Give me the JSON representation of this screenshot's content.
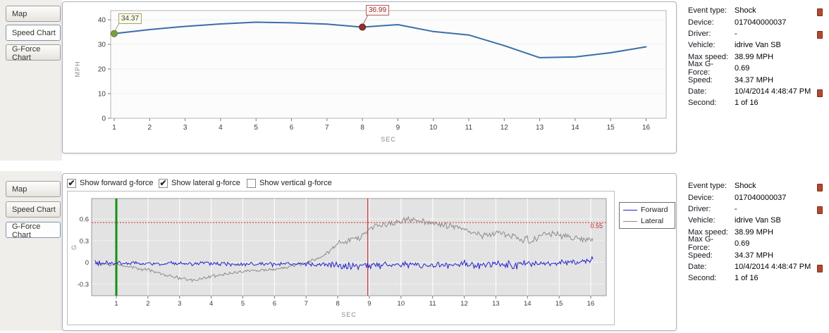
{
  "colors": {
    "speed_line": "#3a6fa8",
    "start_marker_fill": "#7f9d3f",
    "start_marker_stroke": "#5d7a2b",
    "event_marker_fill": "#8e3232",
    "event_marker_stroke": "#642020",
    "threshold_color": "#cc2a2a",
    "event_line_color": "#cc2a2a",
    "start_line_color": "#149014"
  },
  "top_panel": {
    "tabs": [
      {
        "label": "Map",
        "active": false
      },
      {
        "label": "Speed Chart",
        "active": true
      },
      {
        "label": "G-Force Chart",
        "active": false
      }
    ]
  },
  "bottom_panel": {
    "tabs": [
      {
        "label": "Map",
        "active": false
      },
      {
        "label": "Speed Chart",
        "active": false
      },
      {
        "label": "G-Force Chart",
        "active": true
      }
    ],
    "checkboxes": [
      {
        "label": "Show forward g-force",
        "checked": true
      },
      {
        "label": "Show lateral g-force",
        "checked": true
      },
      {
        "label": "Show vertical g-force",
        "checked": false
      }
    ],
    "legend": [
      {
        "label": "Forward",
        "color": "#2323cc"
      },
      {
        "label": "Lateral",
        "color": "#8c8c8c"
      }
    ]
  },
  "info_rows": [
    {
      "label": "Event type:",
      "value": "Shock"
    },
    {
      "label": "Device:",
      "value": "017040000037"
    },
    {
      "label": "Driver:",
      "value": "-"
    },
    {
      "label": "Vehicle:",
      "value": "idrive Van SB"
    },
    {
      "label": "Max speed:",
      "value": "38.99 MPH"
    },
    {
      "label": "Max G-Force:",
      "value": "0.69"
    },
    {
      "label": "Speed:",
      "value": "34.37 MPH"
    },
    {
      "label": "Date:",
      "value": "10/4/2014 4:48:47 PM"
    },
    {
      "label": "Second:",
      "value": "1 of 16"
    }
  ],
  "chart_data": [
    {
      "id": "speed",
      "type": "line",
      "title": "",
      "xlabel": "SEC",
      "ylabel": "MPH",
      "ylim": [
        0,
        42
      ],
      "y_ticks": [
        0,
        10,
        20,
        30,
        40
      ],
      "x_ticks": [
        1,
        2,
        3,
        4,
        5,
        6,
        7,
        8,
        9,
        10,
        11,
        12,
        13,
        14,
        15,
        16
      ],
      "categories": [
        1,
        2,
        3,
        4,
        5,
        6,
        7,
        8,
        9,
        10,
        11,
        12,
        13,
        14,
        15,
        16
      ],
      "series": [
        {
          "name": "Speed (MPH)",
          "values": [
            34.37,
            36.0,
            37.3,
            38.3,
            38.99,
            38.75,
            38.2,
            36.99,
            38.0,
            35.2,
            33.8,
            29.5,
            24.6,
            24.9,
            26.6,
            29.0
          ]
        }
      ],
      "markers": [
        {
          "x": 1,
          "y": 34.37,
          "label": "34.37",
          "kind": "start"
        },
        {
          "x": 8,
          "y": 36.99,
          "label": "36.99",
          "kind": "event"
        }
      ]
    },
    {
      "id": "gforce",
      "type": "line",
      "title": "",
      "xlabel": "SEC",
      "ylabel": "G",
      "ylim": [
        -0.46,
        0.88
      ],
      "y_ticks": [
        -0.3,
        0,
        0.3,
        0.6
      ],
      "x_ticks": [
        1,
        2,
        3,
        4,
        5,
        6,
        7,
        8,
        9,
        10,
        11,
        12,
        13,
        14,
        15,
        16
      ],
      "threshold": {
        "value": 0.55,
        "label": "0.55"
      },
      "start_line_x": 1,
      "event_line_x": 8.95,
      "x_start": 0.33,
      "x_end": 16.09,
      "step": 0.033,
      "series": [
        {
          "name": "Forward",
          "color": "#2323cc",
          "seed": 41,
          "trend": [
            [
              0.33,
              -0.01
            ],
            [
              2,
              -0.02
            ],
            [
              4,
              -0.02
            ],
            [
              6,
              -0.03
            ],
            [
              7.5,
              -0.03
            ],
            [
              8.5,
              -0.05
            ],
            [
              9,
              -0.03
            ],
            [
              9.5,
              -0.05
            ],
            [
              10,
              -0.02
            ],
            [
              10.5,
              -0.05
            ],
            [
              11,
              -0.03
            ],
            [
              11.5,
              -0.05
            ],
            [
              12,
              -0.02
            ],
            [
              12.5,
              -0.04
            ],
            [
              13,
              -0.02
            ],
            [
              13.6,
              -0.06
            ],
            [
              14,
              -0.01
            ],
            [
              14.5,
              -0.03
            ],
            [
              15,
              -0.01
            ],
            [
              15.5,
              0.0
            ],
            [
              16.09,
              0.04
            ]
          ],
          "noise_envelope": [
            [
              0.33,
              0.045
            ],
            [
              2,
              0.04
            ],
            [
              4,
              0.035
            ],
            [
              6,
              0.035
            ],
            [
              7.5,
              0.04
            ],
            [
              8.2,
              0.055
            ],
            [
              9,
              0.07
            ],
            [
              10,
              0.055
            ],
            [
              11,
              0.06
            ],
            [
              12,
              0.055
            ],
            [
              13,
              0.07
            ],
            [
              13.8,
              0.075
            ],
            [
              14.5,
              0.06
            ],
            [
              15.2,
              0.045
            ],
            [
              16.09,
              0.045
            ]
          ]
        },
        {
          "name": "Lateral",
          "color": "#8c8c8c",
          "seed": 97,
          "trend": [
            [
              0.33,
              -0.02
            ],
            [
              1,
              -0.03
            ],
            [
              1.5,
              -0.07
            ],
            [
              2,
              -0.1
            ],
            [
              2.5,
              -0.17
            ],
            [
              3,
              -0.22
            ],
            [
              3.4,
              -0.25
            ],
            [
              4,
              -0.2
            ],
            [
              4.5,
              -0.16
            ],
            [
              5,
              -0.13
            ],
            [
              5.5,
              -0.11
            ],
            [
              6,
              -0.1
            ],
            [
              6.5,
              -0.06
            ],
            [
              7,
              -0.01
            ],
            [
              7.4,
              0.05
            ],
            [
              7.7,
              0.14
            ],
            [
              8,
              0.26
            ],
            [
              8.4,
              0.3
            ],
            [
              8.7,
              0.34
            ],
            [
              9,
              0.48
            ],
            [
              9.4,
              0.52
            ],
            [
              9.8,
              0.53
            ],
            [
              10.1,
              0.58
            ],
            [
              10.4,
              0.6
            ],
            [
              10.7,
              0.56
            ],
            [
              11,
              0.55
            ],
            [
              11.4,
              0.51
            ],
            [
              11.8,
              0.48
            ],
            [
              12.2,
              0.43
            ],
            [
              12.6,
              0.36
            ],
            [
              13,
              0.42
            ],
            [
              13.4,
              0.37
            ],
            [
              13.8,
              0.32
            ],
            [
              14.2,
              0.31
            ],
            [
              14.6,
              0.4
            ],
            [
              15,
              0.37
            ],
            [
              15.4,
              0.34
            ],
            [
              16.09,
              0.3
            ]
          ],
          "noise_envelope": [
            [
              0.33,
              0.03
            ],
            [
              3,
              0.03
            ],
            [
              5,
              0.02
            ],
            [
              7,
              0.025
            ],
            [
              8,
              0.04
            ],
            [
              9,
              0.055
            ],
            [
              10,
              0.06
            ],
            [
              11,
              0.05
            ],
            [
              12,
              0.05
            ],
            [
              13,
              0.055
            ],
            [
              14,
              0.06
            ],
            [
              15,
              0.05
            ],
            [
              16.09,
              0.045
            ]
          ]
        }
      ]
    }
  ]
}
